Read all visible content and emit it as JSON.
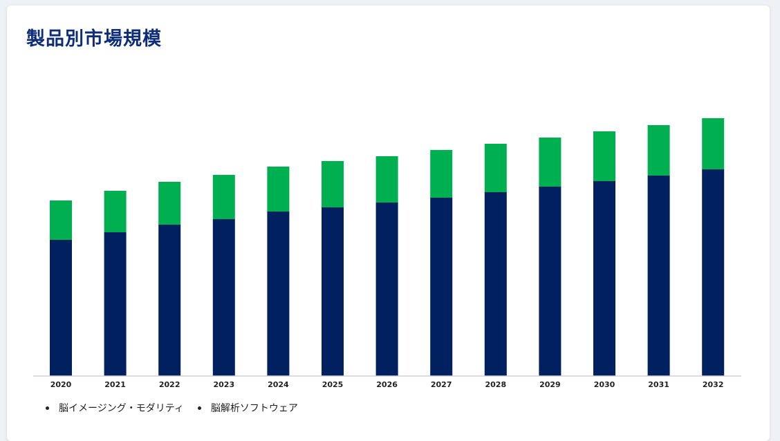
{
  "chart_data": {
    "type": "bar",
    "stacked": true,
    "title": "製品別市場規模",
    "categories": [
      "2020",
      "2021",
      "2022",
      "2023",
      "2024",
      "2025",
      "2026",
      "2027",
      "2028",
      "2029",
      "2030",
      "2031",
      "2032"
    ],
    "series": [
      {
        "name": "脳イメージング・モダリティ",
        "color": "#002060",
        "values": [
          197,
          208,
          219,
          227,
          238,
          244,
          251,
          258,
          266,
          274,
          282,
          290,
          299
        ]
      },
      {
        "name": "脳解析ソフトウェア",
        "color": "#00b050",
        "values": [
          57,
          60,
          62,
          64,
          65,
          67,
          67,
          69,
          70,
          71,
          72,
          73,
          74
        ]
      }
    ],
    "ylim": [
      0,
      380
    ],
    "grid": false,
    "y_axis_visible": false,
    "legend_position": "bottom-left"
  }
}
